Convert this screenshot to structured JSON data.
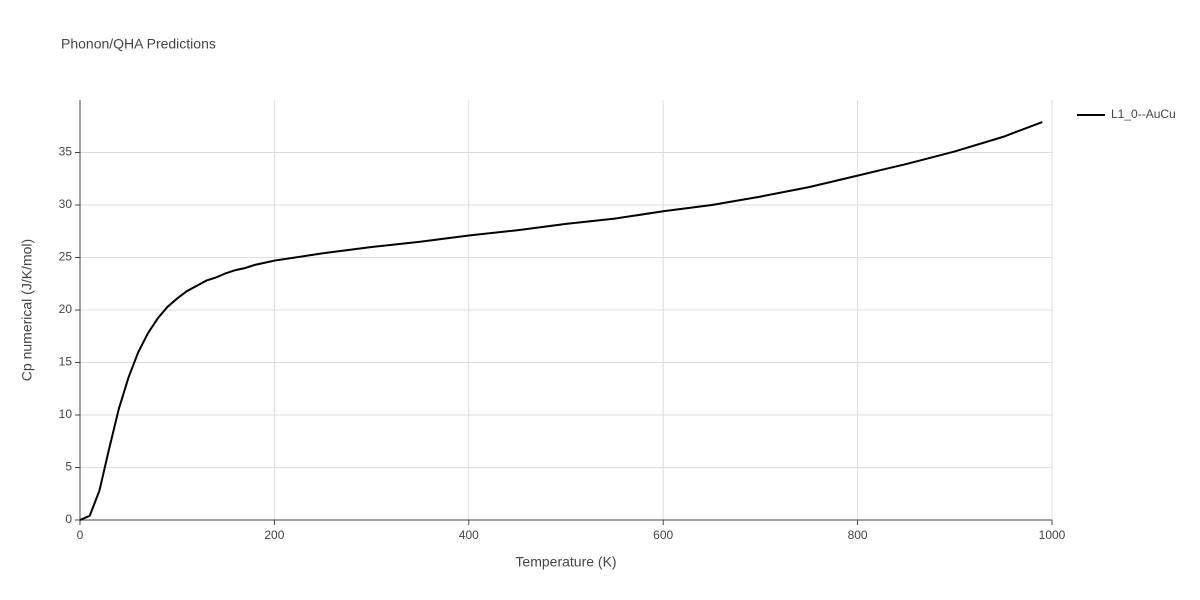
{
  "chart_data": {
    "type": "line",
    "title": "Phonon/QHA Predictions",
    "x_label": "Temperature (K)",
    "y_label": "Cp numerical (J/K/mol)",
    "x": [
      0,
      10,
      20,
      30,
      40,
      50,
      60,
      70,
      80,
      90,
      100,
      110,
      120,
      130,
      140,
      150,
      160,
      170,
      180,
      190,
      200,
      250,
      300,
      350,
      400,
      450,
      500,
      550,
      600,
      650,
      700,
      750,
      800,
      850,
      900,
      950,
      990
    ],
    "series": [
      {
        "name": "L1_0--AuCu",
        "color": "#000000",
        "values": [
          0,
          0.4,
          2.8,
          6.8,
          10.6,
          13.6,
          16.0,
          17.8,
          19.2,
          20.3,
          21.1,
          21.8,
          22.3,
          22.8,
          23.1,
          23.5,
          23.8,
          24.0,
          24.3,
          24.5,
          24.7,
          25.4,
          26.0,
          26.5,
          27.1,
          27.6,
          28.2,
          28.7,
          29.4,
          30.0,
          30.8,
          31.7,
          32.8,
          33.9,
          35.1,
          36.5,
          37.9
        ]
      }
    ],
    "xlim": [
      0,
      1000
    ],
    "xticks": [
      0,
      200,
      400,
      600,
      800,
      1000
    ],
    "ylim": [
      0,
      40
    ],
    "yticks": [
      0,
      5,
      10,
      15,
      20,
      25,
      30,
      35
    ],
    "grid": true,
    "legend": "right"
  }
}
